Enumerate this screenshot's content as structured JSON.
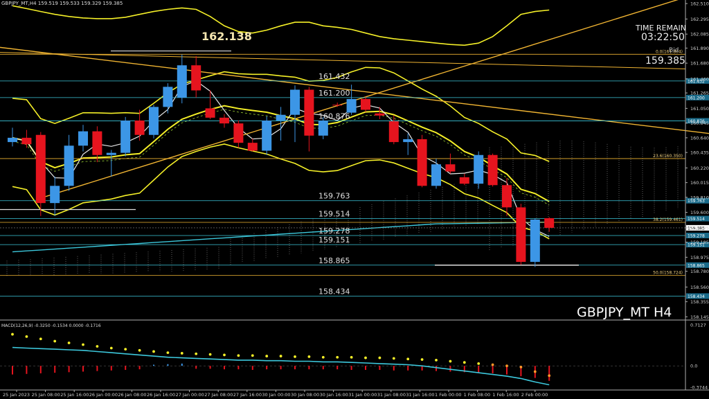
{
  "header": {
    "title": "GBPJPY_MT,H4  159.519 159.533 159.329 159.385",
    "macd_title": "MACD(12,26,9) -0.3250 -0.1534 0.0000 -0.1716"
  },
  "info": {
    "big_price": "162.138",
    "time_remain_label": "TIME REMAIN",
    "time_remain_value": "03:22:50",
    "bid_label": "Bid",
    "bid_value": "159.385",
    "symbol_label": "GBPJPY_MT H4"
  },
  "colors": {
    "background": "#000000",
    "bull": "#3c96e6",
    "bear": "#e6141e",
    "yellow": "#f5f028",
    "orange": "#f0b432",
    "cyan": "#3cc8dc",
    "white": "#e0e0e0"
  },
  "chart_data": {
    "type": "candlestick",
    "symbol": "GBPJPY_MT",
    "timeframe": "H4",
    "ohlc_last": {
      "open": 159.519,
      "high": 159.533,
      "low": 159.329,
      "close": 159.385
    },
    "x_tick_labels": [
      "25 Jan 2023",
      "25 Jan 08:00",
      "25 Jan 16:00",
      "26 Jan 00:00",
      "26 Jan 08:00",
      "26 Jan 16:00",
      "27 Jan 00:00",
      "27 Jan 08:00",
      "27 Jan 16:00",
      "30 Jan 00:00",
      "30 Jan 08:00",
      "30 Jan 16:00",
      "31 Jan 00:00",
      "31 Jan 08:00",
      "31 Jan 16:00",
      "1 Feb 00:00",
      "1 Feb 08:00",
      "1 Feb 16:00",
      "2 Feb 00:00"
    ],
    "y_axis_labels": [
      "162.510",
      "162.295",
      "162.085",
      "161.890",
      "161.680",
      "161.460",
      "161.265",
      "161.050",
      "160.845",
      "160.640",
      "160.435",
      "160.220",
      "160.015",
      "159.810",
      "159.600",
      "159.385",
      "159.185",
      "158.975",
      "158.780",
      "158.560",
      "158.355",
      "158.145"
    ],
    "y_range": [
      158.1,
      162.56
    ],
    "candles": [
      {
        "o": 160.58,
        "h": 160.78,
        "l": 160.52,
        "c": 160.64
      },
      {
        "o": 160.64,
        "h": 160.75,
        "l": 160.5,
        "c": 160.55
      },
      {
        "o": 160.68,
        "h": 160.72,
        "l": 159.55,
        "c": 159.73
      },
      {
        "o": 159.73,
        "h": 160.1,
        "l": 159.55,
        "c": 159.97
      },
      {
        "o": 159.97,
        "h": 160.68,
        "l": 159.9,
        "c": 160.53
      },
      {
        "o": 160.53,
        "h": 160.82,
        "l": 160.45,
        "c": 160.73
      },
      {
        "o": 160.73,
        "h": 160.8,
        "l": 160.3,
        "c": 160.4
      },
      {
        "o": 160.4,
        "h": 160.47,
        "l": 160.1,
        "c": 160.43
      },
      {
        "o": 160.43,
        "h": 160.93,
        "l": 160.38,
        "c": 160.88
      },
      {
        "o": 160.88,
        "h": 161.03,
        "l": 160.6,
        "c": 160.68
      },
      {
        "o": 160.68,
        "h": 161.1,
        "l": 160.63,
        "c": 161.07
      },
      {
        "o": 161.07,
        "h": 161.4,
        "l": 160.98,
        "c": 161.35
      },
      {
        "o": 161.2,
        "h": 161.8,
        "l": 161.12,
        "c": 161.65
      },
      {
        "o": 161.65,
        "h": 161.78,
        "l": 161.2,
        "c": 161.3
      },
      {
        "o": 161.05,
        "h": 161.3,
        "l": 160.9,
        "c": 160.92
      },
      {
        "o": 160.92,
        "h": 160.97,
        "l": 160.78,
        "c": 160.84
      },
      {
        "o": 160.84,
        "h": 160.88,
        "l": 160.5,
        "c": 160.57
      },
      {
        "o": 160.57,
        "h": 160.63,
        "l": 160.45,
        "c": 160.46
      },
      {
        "o": 160.46,
        "h": 160.94,
        "l": 160.4,
        "c": 160.88
      },
      {
        "o": 160.88,
        "h": 161.07,
        "l": 160.6,
        "c": 160.96
      },
      {
        "o": 160.96,
        "h": 161.37,
        "l": 160.58,
        "c": 161.31
      },
      {
        "o": 161.31,
        "h": 161.35,
        "l": 160.45,
        "c": 160.67
      },
      {
        "o": 160.67,
        "h": 160.93,
        "l": 160.62,
        "c": 160.88
      },
      {
        "o": 161.1,
        "h": 161.13,
        "l": 161.07,
        "c": 161.09
      },
      {
        "o": 160.99,
        "h": 161.38,
        "l": 160.96,
        "c": 161.18
      },
      {
        "o": 161.18,
        "h": 161.21,
        "l": 161.0,
        "c": 161.03
      },
      {
        "o": 160.98,
        "h": 161.07,
        "l": 160.9,
        "c": 160.95
      },
      {
        "o": 160.87,
        "h": 160.95,
        "l": 160.55,
        "c": 160.58
      },
      {
        "o": 160.58,
        "h": 160.7,
        "l": 160.4,
        "c": 160.62
      },
      {
        "o": 160.62,
        "h": 160.68,
        "l": 159.95,
        "c": 159.97
      },
      {
        "o": 159.97,
        "h": 160.35,
        "l": 159.93,
        "c": 160.27
      },
      {
        "o": 160.27,
        "h": 160.42,
        "l": 160.14,
        "c": 160.17
      },
      {
        "o": 160.09,
        "h": 160.14,
        "l": 159.98,
        "c": 160.0
      },
      {
        "o": 160.0,
        "h": 160.45,
        "l": 159.93,
        "c": 160.4
      },
      {
        "o": 160.4,
        "h": 160.42,
        "l": 159.96,
        "c": 159.98
      },
      {
        "o": 159.98,
        "h": 160.08,
        "l": 159.55,
        "c": 159.67
      },
      {
        "o": 159.67,
        "h": 159.72,
        "l": 158.87,
        "c": 158.91
      },
      {
        "o": 158.91,
        "h": 159.52,
        "l": 158.84,
        "c": 159.5
      },
      {
        "o": 159.519,
        "h": 159.533,
        "l": 159.329,
        "c": 159.385
      }
    ],
    "horizontal_levels": [
      {
        "value": 161.432,
        "label": "161.432"
      },
      {
        "value": 161.2,
        "label": "161.200"
      },
      {
        "value": 160.876,
        "label": "160.876"
      },
      {
        "value": 159.763,
        "label": "159.763"
      },
      {
        "value": 159.514,
        "label": "159.514"
      },
      {
        "value": 159.278,
        "label": "159.278"
      },
      {
        "value": 159.151,
        "label": "159.151"
      },
      {
        "value": 158.865,
        "label": "158.865"
      },
      {
        "value": 158.434,
        "label": "158.434"
      }
    ],
    "fib_levels": [
      {
        "value": 161.804,
        "label": "0.0(161.804)"
      },
      {
        "value": 160.35,
        "label": "23.6(160.350)"
      },
      {
        "value": 159.461,
        "label": "38.2(159.461)"
      },
      {
        "value": 158.724,
        "label": "50.0(158.724)"
      }
    ],
    "macd": {
      "name": "MACD(12,26,9)",
      "values": [
        -0.325,
        -0.1534,
        0.0,
        -0.1716
      ],
      "y_axis_labels": [
        "0.7127",
        "0.0",
        "-0.3744"
      ],
      "range": [
        -0.42,
        0.75
      ],
      "line": [
        0.32,
        0.31,
        0.3,
        0.29,
        0.28,
        0.27,
        0.25,
        0.23,
        0.21,
        0.19,
        0.17,
        0.15,
        0.14,
        0.13,
        0.12,
        0.11,
        0.1,
        0.1,
        0.09,
        0.09,
        0.08,
        0.08,
        0.07,
        0.07,
        0.06,
        0.05,
        0.04,
        0.03,
        0.02,
        0.0,
        -0.03,
        -0.06,
        -0.09,
        -0.12,
        -0.15,
        -0.18,
        -0.22,
        -0.28,
        -0.33
      ],
      "signal": [
        0.55,
        0.51,
        0.47,
        0.43,
        0.4,
        0.37,
        0.34,
        0.31,
        0.29,
        0.27,
        0.25,
        0.23,
        0.22,
        0.21,
        0.2,
        0.19,
        0.18,
        0.18,
        0.17,
        0.17,
        0.16,
        0.16,
        0.15,
        0.15,
        0.15,
        0.14,
        0.14,
        0.13,
        0.12,
        0.11,
        0.1,
        0.08,
        0.06,
        0.04,
        0.02,
        0.0,
        -0.02,
        -0.1,
        -0.17
      ],
      "hist": [
        -0.15,
        -0.14,
        -0.13,
        -0.12,
        -0.11,
        -0.1,
        -0.09,
        -0.08,
        -0.07,
        -0.06,
        0.02,
        0.03,
        0.04,
        -0.05,
        -0.05,
        -0.06,
        -0.06,
        -0.07,
        -0.06,
        -0.06,
        -0.06,
        -0.06,
        -0.06,
        -0.06,
        -0.07,
        -0.07,
        -0.07,
        -0.08,
        -0.08,
        -0.08,
        -0.09,
        -0.1,
        -0.11,
        -0.12,
        -0.13,
        -0.15,
        -0.18,
        -0.21,
        -0.26
      ]
    }
  }
}
